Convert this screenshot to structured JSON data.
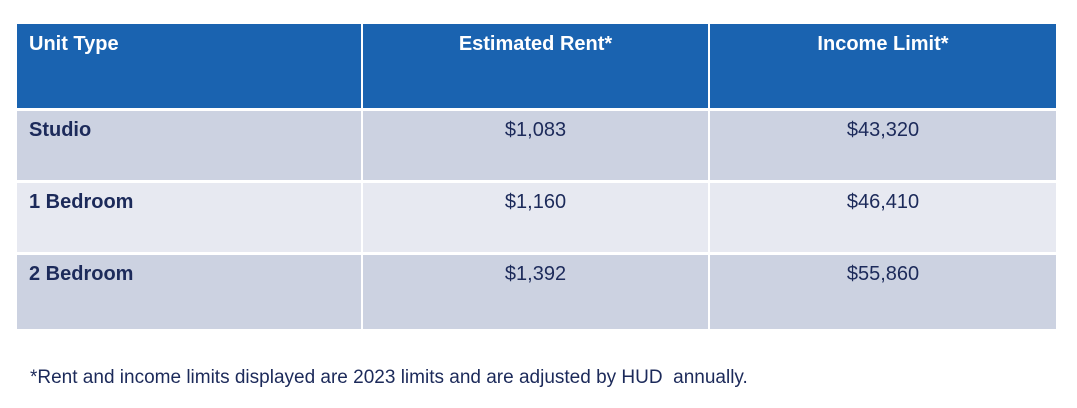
{
  "table": {
    "headers": [
      "Unit Type",
      "Estimated Rent*",
      "Income Limit*"
    ],
    "rows": [
      {
        "unit_type": "Studio",
        "estimated_rent": "$1,083",
        "income_limit": "$43,320"
      },
      {
        "unit_type": "1 Bedroom",
        "estimated_rent": "$1,160",
        "income_limit": "$46,410"
      },
      {
        "unit_type": "2 Bedroom",
        "estimated_rent": "$1,392",
        "income_limit": "$55,860"
      }
    ],
    "colors": {
      "header_bg": "#1a63b0",
      "row_dark": "#ccd2e1",
      "row_light": "#e7e9f1",
      "text": "#1c2a5a"
    }
  },
  "footnote": "*Rent and income limits displayed are 2023 limits and are adjusted by HUD  annually."
}
